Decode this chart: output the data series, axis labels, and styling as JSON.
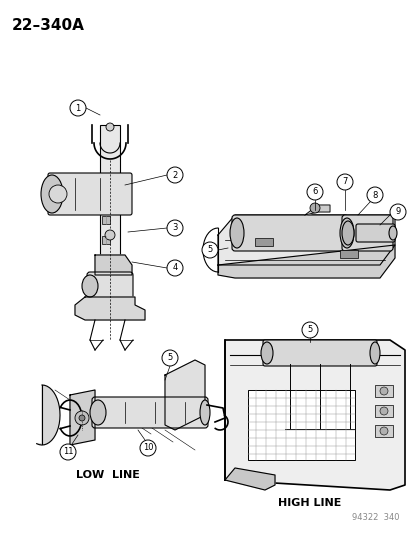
{
  "title": "22–340A",
  "background_color": "#ffffff",
  "line_color": "#000000",
  "label_font_size": 7,
  "title_font_size": 11,
  "watermark": "94322  340",
  "low_line_label": "LOW  LINE",
  "high_line_label": "HIGH LINE",
  "page_bg": "#f5f5f0"
}
